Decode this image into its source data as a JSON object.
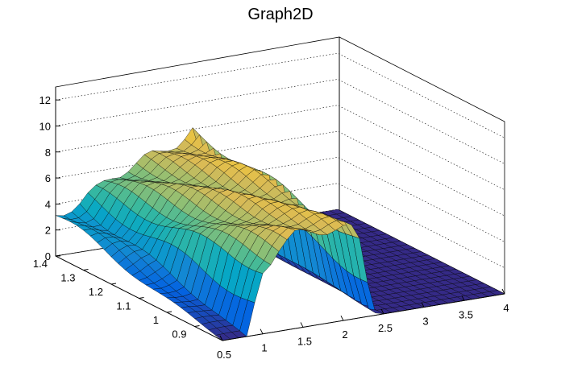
{
  "chart_data": {
    "type": "surface",
    "title": "Graph2D",
    "x_range": [
      0.5,
      4.0
    ],
    "y_range": [
      0.8,
      1.4
    ],
    "z_range": [
      0,
      13
    ],
    "x_ticks": [
      "0.5",
      "1",
      "1.5",
      "2",
      "2.5",
      "3",
      "3.5",
      "4"
    ],
    "y_ticks": [
      "0.9",
      "1",
      "1.1",
      "1.2",
      "1.3",
      "1.4"
    ],
    "z_ticks": [
      "0",
      "2",
      "4",
      "6",
      "8",
      "10",
      "12"
    ],
    "grid": true,
    "palette": [
      "#352a87",
      "#0363e1",
      "#1485d4",
      "#06a7c6",
      "#38b99e",
      "#92bf73",
      "#d9ba56",
      "#fcce2e",
      "#f9fb0e"
    ],
    "surface_profile": {
      "x": [
        0.5,
        0.8,
        1.0,
        1.2,
        1.4,
        1.6,
        1.8,
        2.0,
        2.1,
        2.2,
        2.3,
        2.4,
        2.5,
        2.7,
        3.0,
        3.5,
        4.0
      ],
      "height_near": [
        0,
        0,
        5.0,
        6.3,
        7.1,
        7.4,
        7.2,
        7.0,
        6.8,
        5.9,
        2.8,
        0.2,
        0,
        0,
        0,
        0,
        0
      ],
      "height_far": [
        3.2,
        3.8,
        4.5,
        5.4,
        5.9,
        6.3,
        6.6,
        7.2,
        7.6,
        8.0,
        5.5,
        1.6,
        0.3,
        0,
        0,
        0,
        0
      ]
    }
  }
}
